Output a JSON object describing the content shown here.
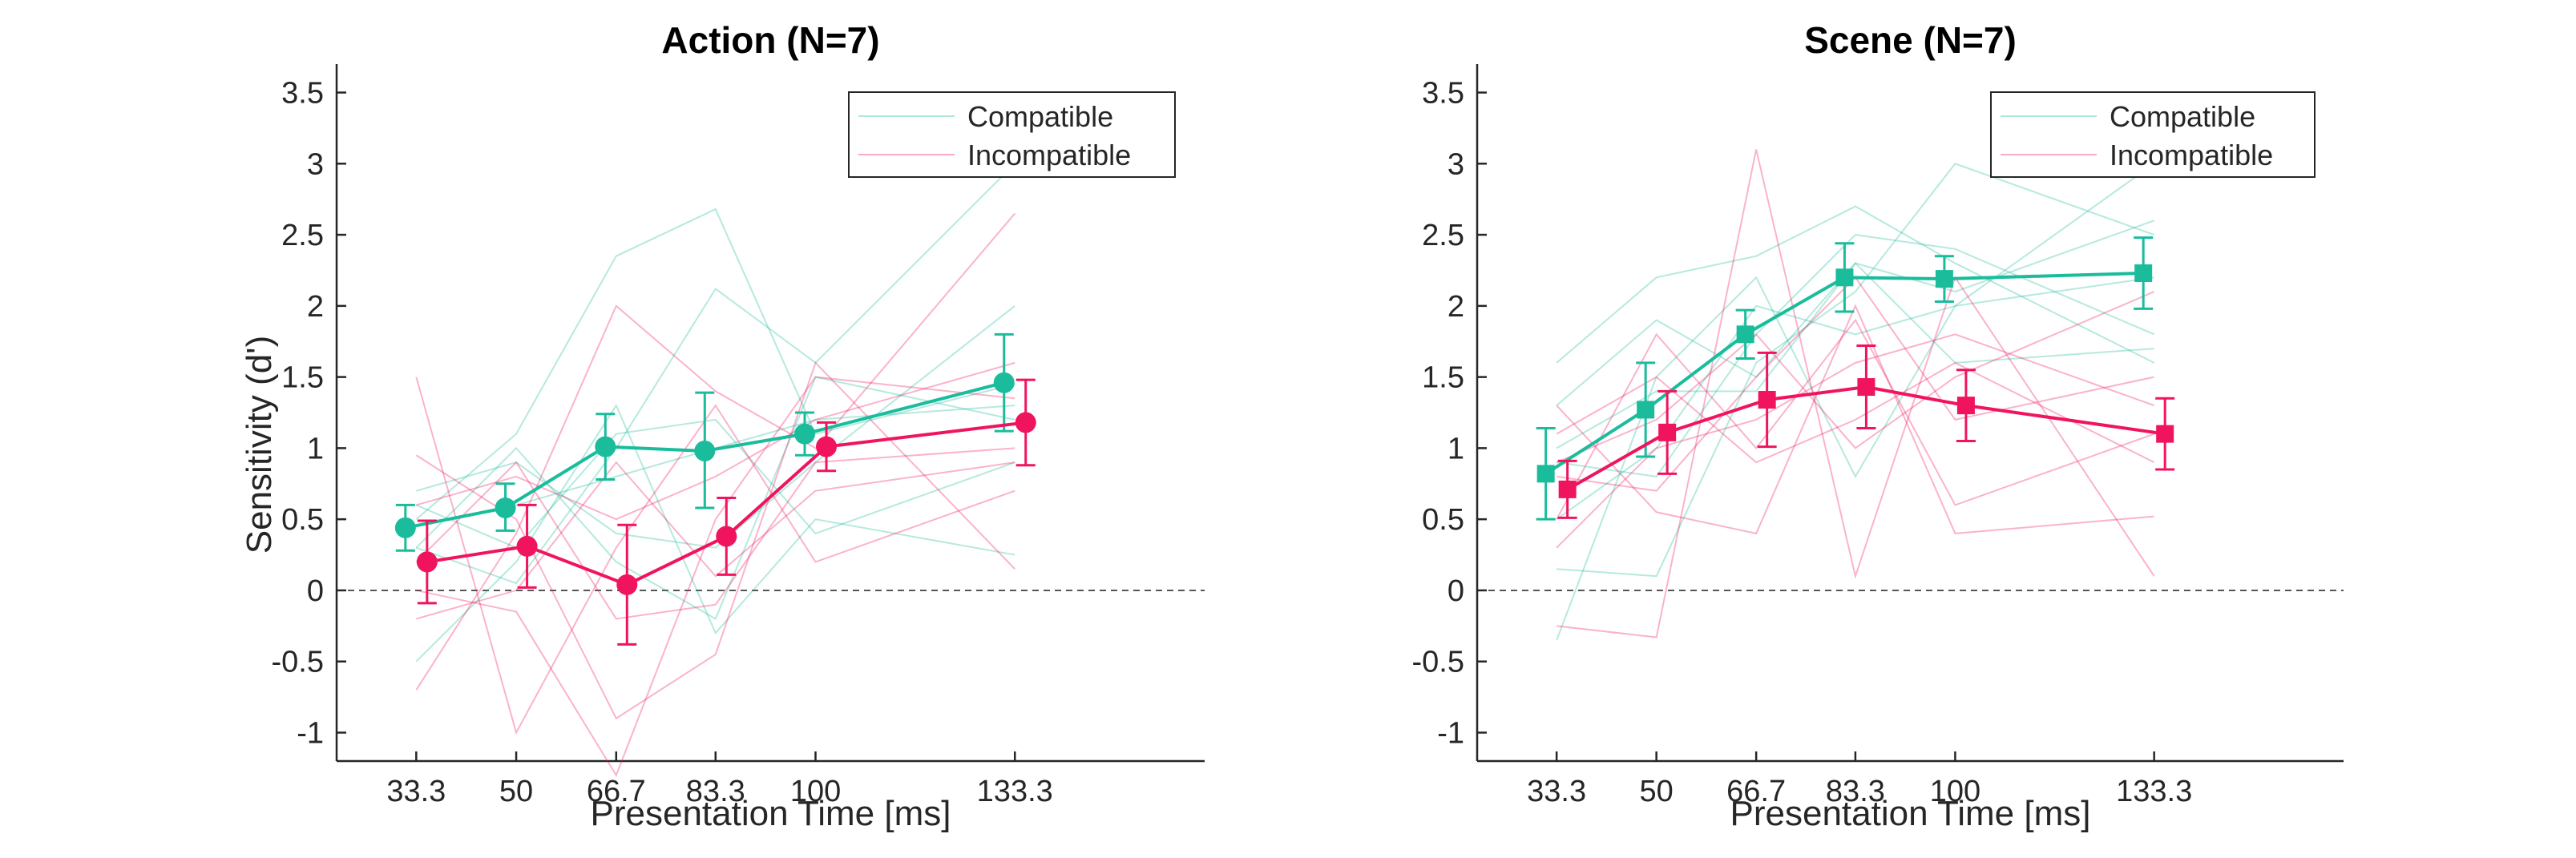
{
  "colors": {
    "compatible": "#1abc9c",
    "incompatible": "#f0145f",
    "axis": "#262626",
    "zero_line": "#555555"
  },
  "chart_data": [
    {
      "type": "line",
      "title": "Action (N=7)",
      "xlabel": "Presentation Time [ms]",
      "ylabel": "Sensitivity (d')",
      "marker": "circle",
      "xlim": [
        20,
        165
      ],
      "ylim": [
        -1.2,
        3.7
      ],
      "x": [
        33.3,
        50,
        66.7,
        83.3,
        100,
        133.3
      ],
      "xtick_labels": [
        "33.3",
        "50",
        "66.7",
        "83.3",
        "100",
        "133.3"
      ],
      "yticks": [
        -1,
        -0.5,
        0,
        0.5,
        1,
        1.5,
        2,
        2.5,
        3,
        3.5
      ],
      "ytick_labels": [
        "-1",
        "-0.5",
        "0",
        "0.5",
        "1",
        "1.5",
        "2",
        "2.5",
        "3",
        "3.5"
      ],
      "grid": false,
      "legend_position": "top-right",
      "series": [
        {
          "name": "Compatible",
          "color_key": "compatible",
          "x_offset": -3,
          "mean": [
            0.44,
            0.58,
            1.01,
            0.98,
            1.1,
            1.46
          ],
          "err_low": [
            0.28,
            0.42,
            0.78,
            0.58,
            0.95,
            1.12
          ],
          "err_high": [
            0.6,
            0.75,
            1.24,
            1.39,
            1.25,
            1.8
          ],
          "subjects": [
            [
              0.5,
              1.1,
              2.35,
              2.68,
              1.1,
              1.45
            ],
            [
              0.3,
              0.05,
              1.0,
              2.12,
              1.6,
              3.0
            ],
            [
              -0.5,
              0.2,
              1.3,
              -0.3,
              0.5,
              0.25
            ],
            [
              0.7,
              0.9,
              0.4,
              0.3,
              0.9,
              2.0
            ],
            [
              0.45,
              0.6,
              0.8,
              1.0,
              1.2,
              1.3
            ],
            [
              0.3,
              1.0,
              0.2,
              -0.2,
              1.5,
              1.2
            ],
            [
              0.6,
              0.3,
              1.1,
              1.2,
              0.4,
              0.9
            ]
          ]
        },
        {
          "name": "Incompatible",
          "color_key": "incompatible",
          "x_offset": 3,
          "mean": [
            0.2,
            0.31,
            0.04,
            0.38,
            1.01,
            1.18
          ],
          "err_low": [
            -0.09,
            0.02,
            -0.38,
            0.11,
            0.84,
            0.88
          ],
          "err_high": [
            0.49,
            0.6,
            0.46,
            0.65,
            1.18,
            1.48
          ],
          "subjects": [
            [
              1.5,
              -1.0,
              0.3,
              1.3,
              0.2,
              0.7
            ],
            [
              -0.7,
              0.4,
              2.0,
              1.4,
              1.0,
              2.65
            ],
            [
              0.0,
              -0.15,
              -1.3,
              0.5,
              1.5,
              1.35
            ],
            [
              0.95,
              0.5,
              -0.9,
              -0.45,
              1.6,
              0.15
            ],
            [
              0.2,
              0.9,
              -0.2,
              -0.1,
              0.9,
              1.0
            ],
            [
              0.6,
              0.8,
              0.5,
              0.8,
              1.2,
              1.6
            ],
            [
              -0.2,
              0.0,
              0.9,
              0.1,
              0.7,
              0.9
            ]
          ]
        }
      ]
    },
    {
      "type": "line",
      "title": "Scene (N=7)",
      "xlabel": "Presentation Time [ms]",
      "ylabel": "",
      "marker": "square",
      "xlim": [
        20,
        165
      ],
      "ylim": [
        -1.2,
        3.7
      ],
      "x": [
        33.3,
        50,
        66.7,
        83.3,
        100,
        133.3
      ],
      "xtick_labels": [
        "33.3",
        "50",
        "66.7",
        "83.3",
        "100",
        "133.3"
      ],
      "yticks": [
        -1,
        -0.5,
        0,
        0.5,
        1,
        1.5,
        2,
        2.5,
        3,
        3.5
      ],
      "ytick_labels": [
        "-1",
        "-0.5",
        "0",
        "0.5",
        "1",
        "1.5",
        "2",
        "2.5",
        "3",
        "3.5"
      ],
      "grid": false,
      "legend_position": "top-right",
      "series": [
        {
          "name": "Compatible",
          "color_key": "compatible",
          "x_offset": -3,
          "mean": [
            0.82,
            1.27,
            1.8,
            2.2,
            2.19,
            2.23
          ],
          "err_low": [
            0.5,
            0.94,
            1.63,
            1.96,
            2.03,
            1.98
          ],
          "err_high": [
            1.14,
            1.6,
            1.97,
            2.44,
            2.35,
            2.48
          ],
          "subjects": [
            [
              1.6,
              2.2,
              2.35,
              2.7,
              2.3,
              1.6
            ],
            [
              0.15,
              0.1,
              1.6,
              2.1,
              3.0,
              2.5
            ],
            [
              -0.35,
              1.5,
              2.2,
              0.8,
              2.0,
              3.0
            ],
            [
              1.3,
              1.9,
              1.5,
              2.3,
              1.6,
              1.7
            ],
            [
              0.9,
              0.8,
              1.8,
              2.5,
              2.4,
              1.8
            ],
            [
              0.5,
              1.0,
              2.0,
              1.8,
              2.0,
              2.2
            ],
            [
              1.0,
              1.4,
              1.4,
              2.3,
              2.1,
              2.6
            ]
          ]
        },
        {
          "name": "Incompatible",
          "color_key": "incompatible",
          "x_offset": 3,
          "mean": [
            0.71,
            1.11,
            1.34,
            1.43,
            1.3,
            1.1
          ],
          "err_low": [
            0.51,
            0.82,
            1.01,
            1.14,
            1.05,
            0.85
          ],
          "err_high": [
            0.91,
            1.4,
            1.67,
            1.72,
            1.55,
            1.35
          ],
          "subjects": [
            [
              -0.25,
              -0.33,
              3.1,
              0.1,
              2.2,
              0.1
            ],
            [
              1.3,
              0.55,
              0.4,
              2.0,
              0.4,
              0.52
            ],
            [
              0.5,
              1.8,
              1.0,
              1.9,
              0.6,
              1.1
            ],
            [
              0.9,
              1.2,
              1.8,
              1.0,
              1.5,
              2.1
            ],
            [
              0.3,
              1.0,
              1.2,
              1.6,
              1.8,
              1.3
            ],
            [
              1.1,
              1.5,
              0.9,
              1.2,
              1.6,
              0.9
            ],
            [
              0.8,
              0.7,
              1.5,
              2.2,
              1.2,
              1.5
            ]
          ]
        }
      ]
    }
  ]
}
